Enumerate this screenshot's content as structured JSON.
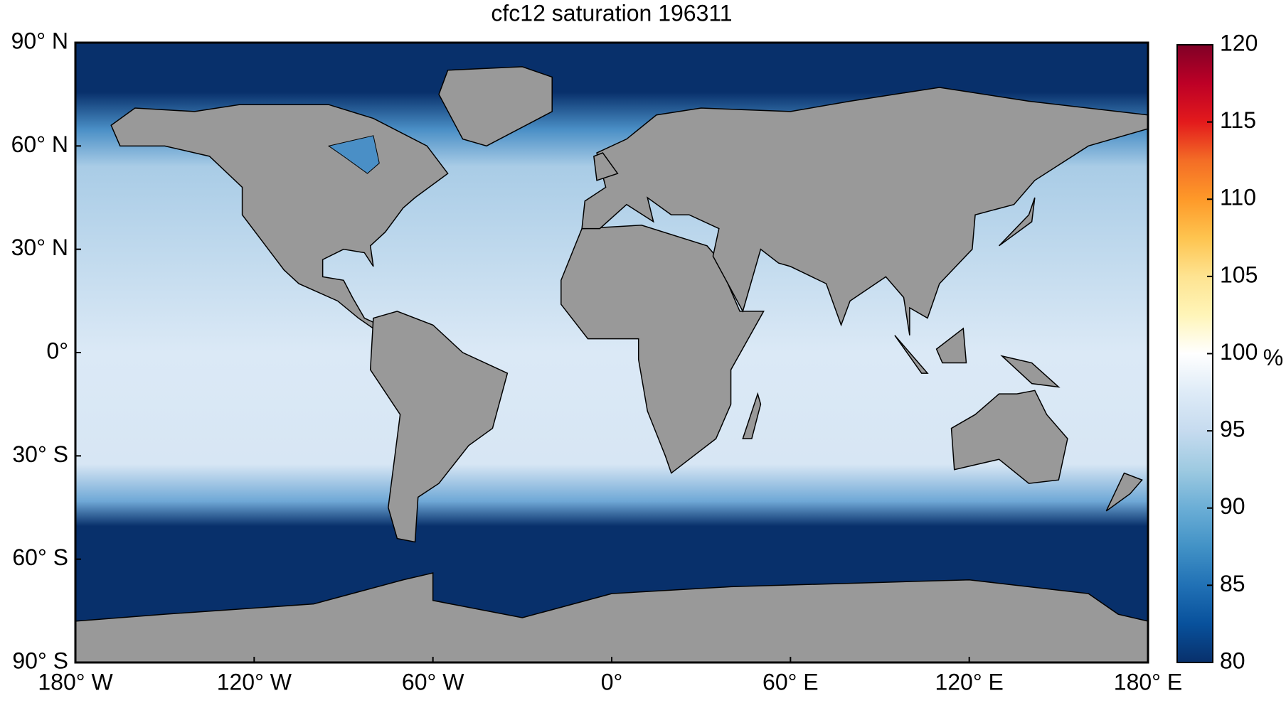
{
  "chart_data": {
    "type": "map",
    "title": "cfc12 saturation 196311",
    "xlim": [
      -180,
      180
    ],
    "xticks": [
      {
        "value": -180,
        "label": "180° W"
      },
      {
        "value": -120,
        "label": "120° W"
      },
      {
        "value": -60,
        "label": "60° W"
      },
      {
        "value": 0,
        "label": "0°"
      },
      {
        "value": 60,
        "label": "60° E"
      },
      {
        "value": 120,
        "label": "120° E"
      },
      {
        "value": 180,
        "label": "180° E"
      }
    ],
    "ylim": [
      -90,
      90
    ],
    "yticks": [
      {
        "value": 90,
        "label": "90° N"
      },
      {
        "value": 60,
        "label": "60° N"
      },
      {
        "value": 30,
        "label": "30° N"
      },
      {
        "value": 0,
        "label": "0°"
      },
      {
        "value": -30,
        "label": "30° S"
      },
      {
        "value": -60,
        "label": "60° S"
      },
      {
        "value": -90,
        "label": "90° S"
      }
    ],
    "colorbar": {
      "lim": [
        80,
        120
      ],
      "ticks": [
        80,
        85,
        90,
        95,
        100,
        105,
        110,
        115,
        120
      ],
      "label": "%",
      "colormap": [
        "#08306b",
        "#08519c",
        "#2171b5",
        "#4292c6",
        "#6baed6",
        "#9ecae1",
        "#c6dbef",
        "#deebf7",
        "#ffffff",
        "#fff5b8",
        "#fee391",
        "#fec44f",
        "#fe9929",
        "#f46d26",
        "#e31a1c",
        "#bd0026",
        "#800026"
      ]
    }
  }
}
